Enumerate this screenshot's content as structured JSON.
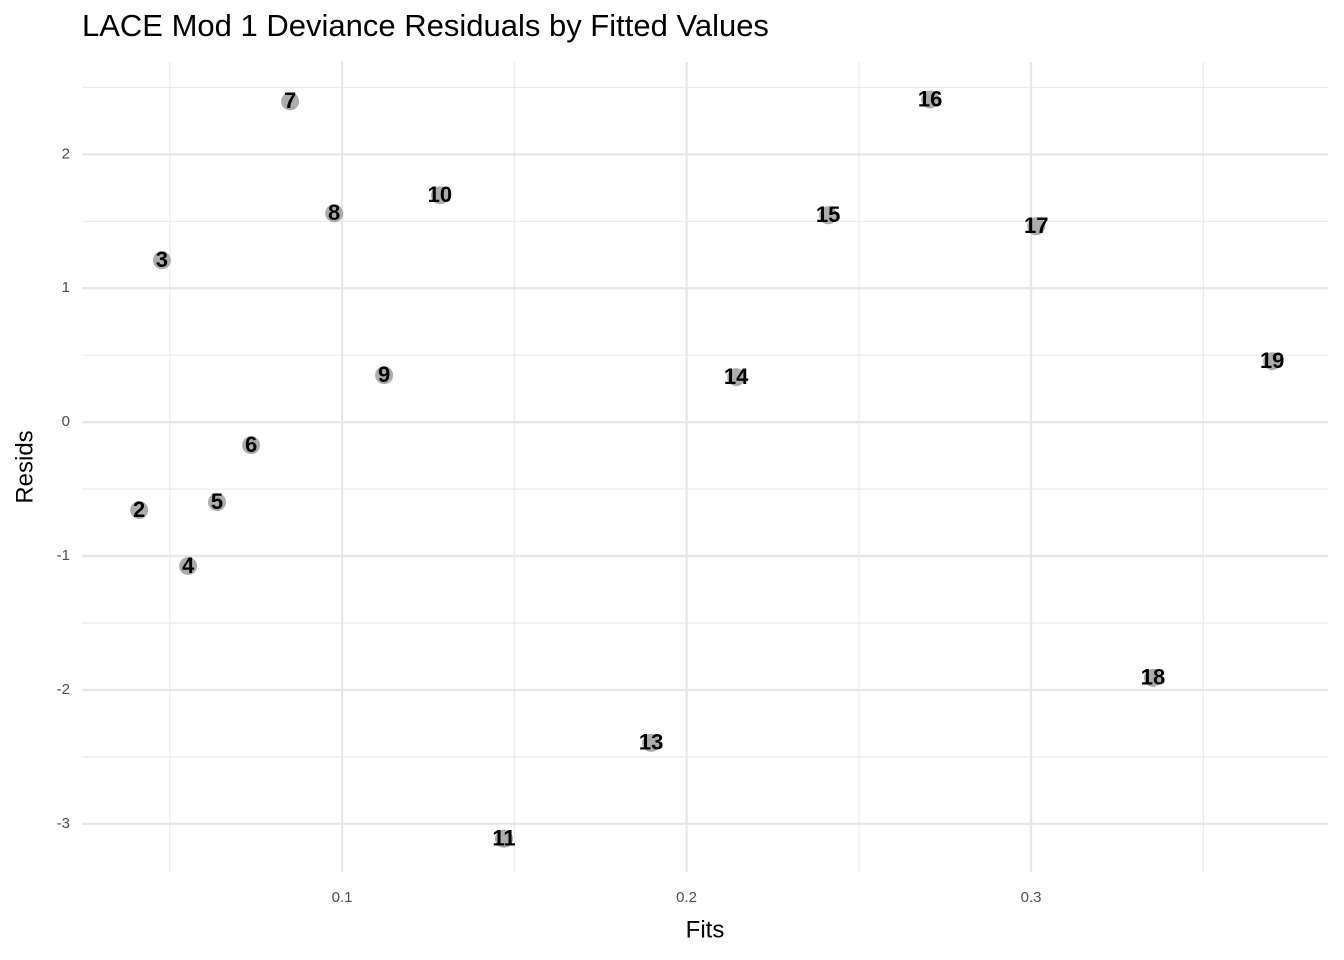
{
  "chart_data": {
    "type": "scatter",
    "title": "LACE Mod 1 Deviance Residuals by Fitted Values",
    "x_label": "Fits",
    "y_label": "Resids",
    "series": [
      {
        "name": "Resids",
        "color": "#9e9e9e",
        "labels": [
          "2",
          "3",
          "4",
          "5",
          "6",
          "7",
          "8",
          "9",
          "10",
          "11",
          "13",
          "14",
          "15",
          "16",
          "17",
          "18",
          "19"
        ],
        "x": [
          0.0411,
          0.0477,
          0.0553,
          0.0637,
          0.0736,
          0.0849,
          0.0977,
          0.1122,
          0.1284,
          0.147,
          0.1897,
          0.2144,
          0.2411,
          0.2707,
          0.3015,
          0.3354,
          0.37
        ],
        "values": [
          -0.657,
          1.209,
          -1.075,
          -0.597,
          -0.172,
          2.396,
          1.56,
          0.351,
          1.694,
          -3.112,
          -2.396,
          0.336,
          1.545,
          2.41,
          1.463,
          -1.91,
          0.455
        ]
      }
    ],
    "xlim": [
      0.0245,
      0.3862
    ],
    "xticks": [
      0.1,
      0.2,
      0.3
    ],
    "ylim": [
      -3.36,
      2.69
    ],
    "yticks": [
      -3,
      -2,
      -1,
      0,
      1,
      2
    ],
    "grid": true
  }
}
